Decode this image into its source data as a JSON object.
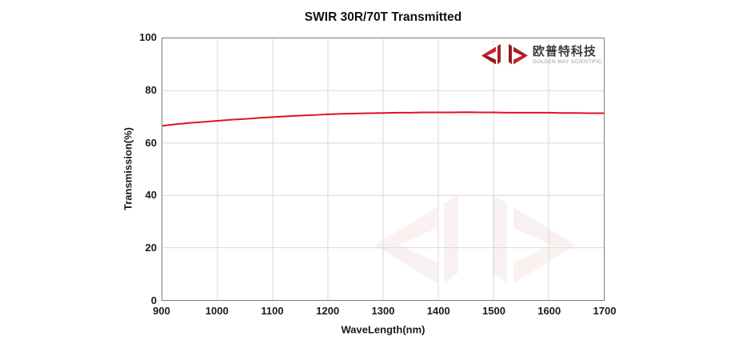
{
  "title": "SWIR 30R/70T Transmitted",
  "logo": {
    "cn": "欧普特科技",
    "en": "GOLDEN WAY SCIENTIFIC",
    "mark_icon": "jc-double-arrow-mark"
  },
  "watermark_icon": "jc-double-arrow-mark",
  "colors": {
    "line": "#e0121d",
    "logo_red_bright": "#c5242b",
    "logo_red_dark": "#951a20",
    "logo_red_mid": "#ad1f26",
    "grid": "#d9d9d9",
    "frame": "#7e7e7e",
    "watermark_opacity": 0.06
  },
  "chart_data": {
    "type": "line",
    "title": "SWIR 30R/70T Transmitted",
    "xlabel": "WaveLength(nm)",
    "ylabel": "Transmission(%)",
    "xlim": [
      900,
      1700
    ],
    "ylim": [
      0,
      100
    ],
    "xticks": [
      900,
      1000,
      1100,
      1200,
      1300,
      1400,
      1500,
      1600,
      1700
    ],
    "yticks": [
      0,
      20,
      40,
      60,
      80,
      100
    ],
    "grid": true,
    "legend": "none",
    "series": [
      {
        "color": "#e0121d",
        "x": [
          900,
          925,
          950,
          975,
          1000,
          1025,
          1050,
          1075,
          1100,
          1125,
          1150,
          1175,
          1200,
          1225,
          1250,
          1275,
          1300,
          1325,
          1350,
          1375,
          1400,
          1425,
          1450,
          1475,
          1500,
          1525,
          1550,
          1575,
          1600,
          1625,
          1650,
          1675,
          1700
        ],
        "y": [
          66.6,
          67.2,
          67.7,
          68.1,
          68.5,
          68.9,
          69.2,
          69.6,
          69.9,
          70.2,
          70.5,
          70.7,
          71.0,
          71.2,
          71.3,
          71.4,
          71.5,
          71.6,
          71.6,
          71.7,
          71.7,
          71.7,
          71.8,
          71.7,
          71.7,
          71.6,
          71.6,
          71.6,
          71.6,
          71.5,
          71.5,
          71.4,
          71.4
        ]
      }
    ]
  }
}
